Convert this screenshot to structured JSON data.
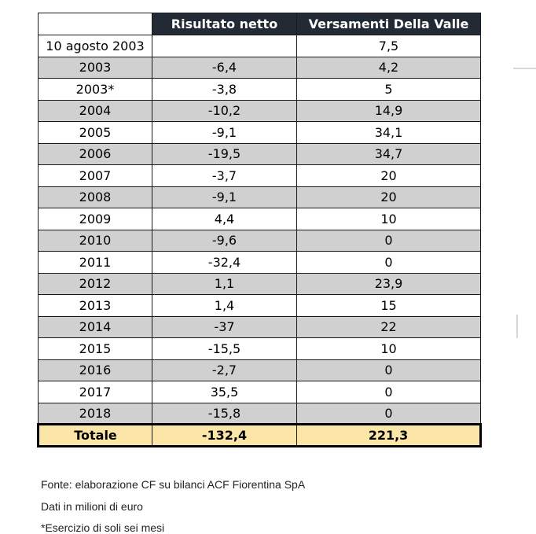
{
  "table": {
    "headers": [
      "",
      "Risultato netto",
      "Versamenti Della Valle"
    ],
    "rows": [
      {
        "period": "10 agosto 2003",
        "risultato": "",
        "versamenti": "7,5"
      },
      {
        "period": "2003",
        "risultato": "-6,4",
        "versamenti": "4,2"
      },
      {
        "period": "2003*",
        "risultato": "-3,8",
        "versamenti": "5"
      },
      {
        "period": "2004",
        "risultato": "-10,2",
        "versamenti": "14,9"
      },
      {
        "period": "2005",
        "risultato": "-9,1",
        "versamenti": "34,1"
      },
      {
        "period": "2006",
        "risultato": "-19,5",
        "versamenti": "34,7"
      },
      {
        "period": "2007",
        "risultato": "-3,7",
        "versamenti": "20"
      },
      {
        "period": "2008",
        "risultato": "-9,1",
        "versamenti": "20"
      },
      {
        "period": "2009",
        "risultato": "4,4",
        "versamenti": "10"
      },
      {
        "period": "2010",
        "risultato": "-9,6",
        "versamenti": "0"
      },
      {
        "period": "2011",
        "risultato": "-32,4",
        "versamenti": "0"
      },
      {
        "period": "2012",
        "risultato": "1,1",
        "versamenti": "23,9"
      },
      {
        "period": "2013",
        "risultato": "1,4",
        "versamenti": "15"
      },
      {
        "period": "2014",
        "risultato": "-37",
        "versamenti": "22"
      },
      {
        "period": "2015",
        "risultato": "-15,5",
        "versamenti": "10"
      },
      {
        "period": "2016",
        "risultato": "-2,7",
        "versamenti": "0"
      },
      {
        "period": "2017",
        "risultato": "35,5",
        "versamenti": "0"
      },
      {
        "period": "2018",
        "risultato": "-15,8",
        "versamenti": "0"
      }
    ],
    "total": {
      "label": "Totale",
      "risultato": "-132,4",
      "versamenti": "221,3"
    }
  },
  "notes": {
    "source": "Fonte: elaborazione CF su bilanci ACF Fiorentina SpA",
    "units": "Dati in milioni di euro",
    "asterisk": "*Esercizio di soli sei mesi"
  },
  "colors": {
    "header_bg": "#222a35",
    "header_text": "#ffffff",
    "row_shaded": "#d0d0d0",
    "row_plain": "#ffffff",
    "total_bg": "#fbe5a7"
  }
}
